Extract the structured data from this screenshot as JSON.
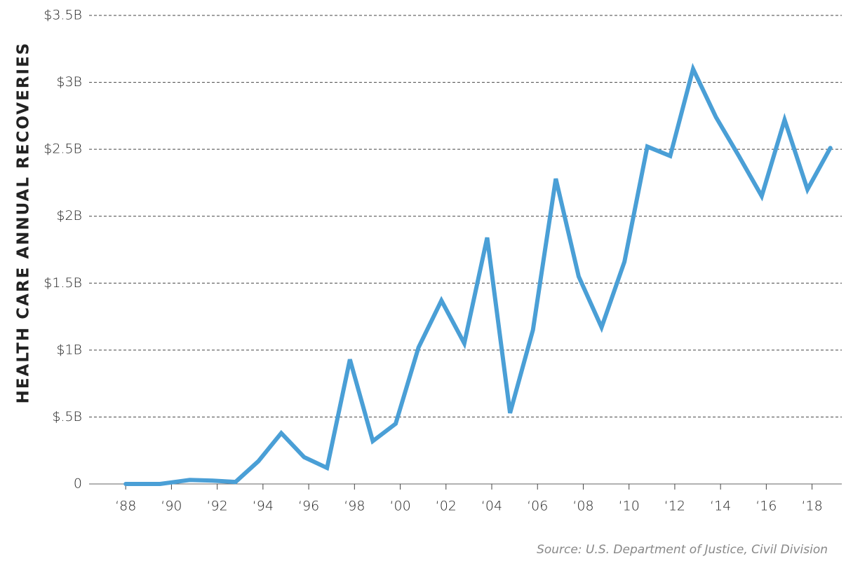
{
  "chart_data": {
    "type": "line",
    "ylabel": "HEALTH CARE ANNUAL RECOVERIES",
    "source": "Source: U.S. Department of Justice, Civil Division",
    "x": [
      1988,
      1989.5,
      1990.8,
      1991.8,
      1992.8,
      1993.8,
      1994.8,
      1995.8,
      1996.8,
      1997.8,
      1998.8,
      1999.8,
      2000.8,
      2001.8,
      2002.8,
      2003.8,
      2004.8,
      2005.8,
      2006.8,
      2007.8,
      2008.8,
      2009.8,
      2010.8,
      2011.8,
      2012.8,
      2013.8,
      2014.8,
      2015.8,
      2016.8,
      2017.8,
      2018.8
    ],
    "series": [
      {
        "color": "#4a9fd6",
        "values": [
          0,
          0,
          0.03,
          0.025,
          0.015,
          0.17,
          0.38,
          0.2,
          0.12,
          0.93,
          0.32,
          0.45,
          1.02,
          1.37,
          1.05,
          1.84,
          0.53,
          1.15,
          2.28,
          1.55,
          1.17,
          1.66,
          2.52,
          2.45,
          3.1,
          2.74,
          2.45,
          2.15,
          2.72,
          2.2,
          2.51
        ]
      }
    ],
    "xlim": [
      1986.4,
      2019.3
    ],
    "xticks": [
      {
        "value": 1988,
        "label": "‘88"
      },
      {
        "value": 1990,
        "label": "‘90"
      },
      {
        "value": 1992,
        "label": "‘92"
      },
      {
        "value": 1994,
        "label": "‘94"
      },
      {
        "value": 1996,
        "label": "‘96"
      },
      {
        "value": 1998,
        "label": "‘98"
      },
      {
        "value": 2000,
        "label": "‘00"
      },
      {
        "value": 2002,
        "label": "‘02"
      },
      {
        "value": 2004,
        "label": "‘04"
      },
      {
        "value": 2006,
        "label": "‘06"
      },
      {
        "value": 2008,
        "label": "‘08"
      },
      {
        "value": 2010,
        "label": "‘10"
      },
      {
        "value": 2012,
        "label": "‘12"
      },
      {
        "value": 2014,
        "label": "‘14"
      },
      {
        "value": 2016,
        "label": "‘16"
      },
      {
        "value": 2018,
        "label": "‘18"
      }
    ],
    "ylim": [
      0,
      3.5
    ],
    "yticks": [
      0,
      {
        "value": 0.5,
        "label": "$.5B"
      },
      {
        "value": 1,
        "label": "$1B"
      },
      {
        "value": 1.5,
        "label": "$1.5B"
      },
      {
        "value": 2,
        "label": "$2B"
      },
      {
        "value": 2.5,
        "label": "$2.5B"
      },
      {
        "value": 3,
        "label": "$3B"
      },
      {
        "value": 3.5,
        "label": "$3.5B"
      }
    ],
    "grid": true
  }
}
